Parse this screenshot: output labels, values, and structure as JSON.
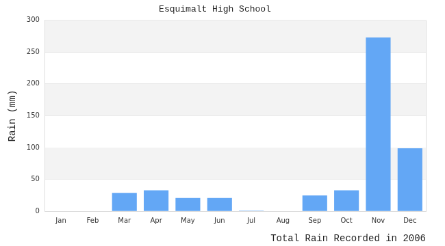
{
  "chart_data": {
    "type": "bar",
    "title": "Esquimalt High School",
    "x_label": "Total Rain Recorded in 2006",
    "y_label": "Rain (mm)",
    "categories": [
      "Jan",
      "Feb",
      "Mar",
      "Apr",
      "May",
      "Jun",
      "Jul",
      "Aug",
      "Sep",
      "Oct",
      "Nov",
      "Dec"
    ],
    "values": [
      0,
      0,
      29,
      33,
      21,
      21,
      1,
      0,
      25,
      33,
      273,
      99
    ],
    "color": "#63a7f5",
    "ylim": [
      0,
      300
    ],
    "yticks": [
      0,
      50,
      100,
      150,
      200,
      250,
      300
    ],
    "grid": true
  }
}
